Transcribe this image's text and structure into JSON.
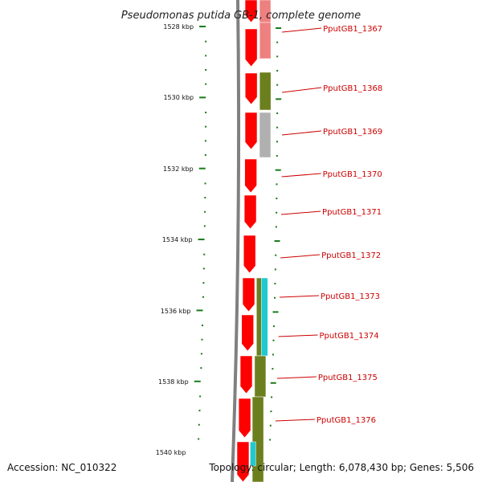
{
  "title": "Pseudomonas putida GB-1, complete genome",
  "accession": "Accession: NC_010322",
  "summary": "Topology: circular; Length: 6,078,430 bp; Genes: 5,506",
  "colors": {
    "backbone": "#808080",
    "cds": "#ff0000",
    "tick": "#1a7a1a",
    "label": "#cc0000",
    "olive": "#6b7f1e",
    "gray": "#b0b0b0",
    "pink": "#ee8080",
    "cyan": "#20c8d0"
  },
  "scale": [
    {
      "label": "1528 kbp"
    },
    {
      "label": "1530 kbp"
    },
    {
      "label": "1532 kbp"
    },
    {
      "label": "1534 kbp"
    },
    {
      "label": "1536 kbp"
    },
    {
      "label": "1538 kbp"
    },
    {
      "label": "1540 kbp"
    }
  ],
  "genes": [
    {
      "label": "PputGB1_1367"
    },
    {
      "label": "PputGB1_1368"
    },
    {
      "label": "PputGB1_1369"
    },
    {
      "label": "PputGB1_1370"
    },
    {
      "label": "PputGB1_1371"
    },
    {
      "label": "PputGB1_1372"
    },
    {
      "label": "PputGB1_1373"
    },
    {
      "label": "PputGB1_1374"
    },
    {
      "label": "PputGB1_1375"
    },
    {
      "label": "PputGB1_1376"
    }
  ]
}
